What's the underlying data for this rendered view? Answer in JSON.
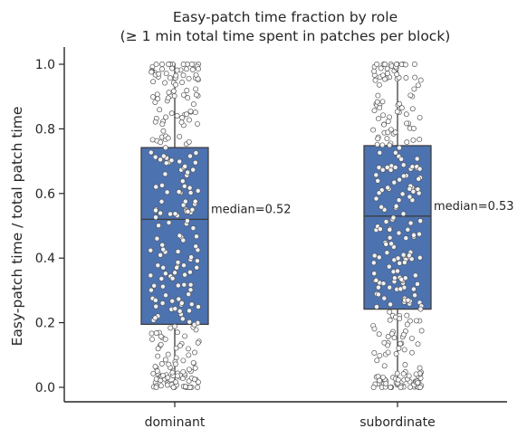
{
  "chart_data": {
    "type": "box",
    "title_lines": [
      "Easy-patch time fraction by role",
      "(≥ 1 min total time spent in patches per block)"
    ],
    "xlabel": "",
    "ylabel": "Easy-patch time / total patch time",
    "ylim": [
      -0.045,
      1.05
    ],
    "yticks": [
      0.0,
      0.2,
      0.4,
      0.6,
      0.8,
      1.0
    ],
    "ytick_labels": [
      "0.0",
      "0.2",
      "0.4",
      "0.6",
      "0.8",
      "1.0"
    ],
    "categories": [
      "dominant",
      "subordinate"
    ],
    "boxes": [
      {
        "name": "dominant",
        "min": 0.0,
        "q1": 0.195,
        "median": 0.52,
        "q3": 0.742,
        "max": 1.0,
        "annotation": "median=0.52"
      },
      {
        "name": "subordinate",
        "min": 0.0,
        "q1": 0.242,
        "median": 0.53,
        "q3": 0.748,
        "max": 1.0,
        "annotation": "median=0.53"
      }
    ],
    "points_per_group": 300,
    "box_color": "#4c72b0",
    "point_fill": "#ffffff",
    "point_edge": "#555555",
    "grid": false,
    "legend": "none"
  }
}
